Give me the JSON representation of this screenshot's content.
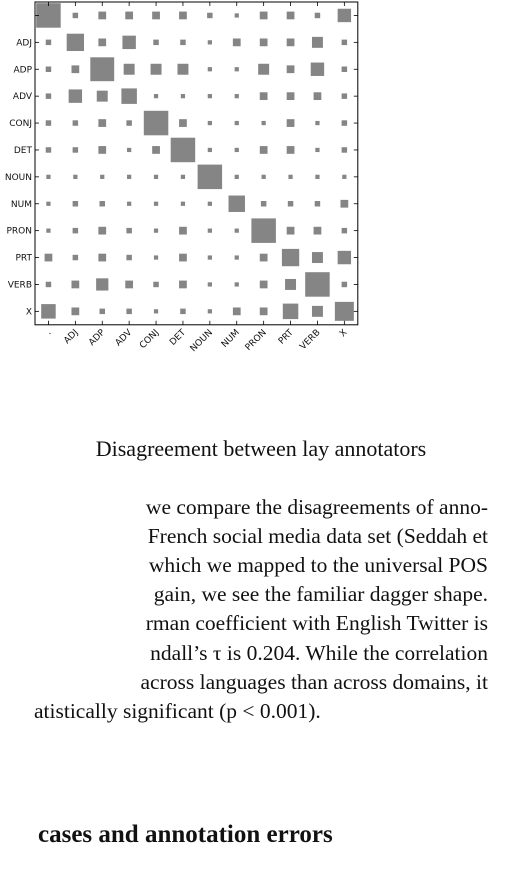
{
  "chart_data": {
    "type": "heatmap",
    "title": "",
    "xlabel": "",
    "ylabel": "",
    "categories": [
      "",
      "ADJ",
      "ADP",
      "ADV",
      "CONJ",
      "DET",
      "NOUN",
      "NUM",
      "PRON",
      "PRT",
      "VERB",
      "X"
    ],
    "y_tick_labels": [
      "",
      "ADJ",
      "ADP",
      "ADV",
      "CONJ",
      "DET",
      "NOUN",
      "NUM",
      "PRON",
      "PRT",
      "VERB",
      "X"
    ],
    "x_tick_labels": [
      ".",
      "ADJ",
      "ADP",
      "ADV",
      "CONJ",
      "DET",
      "NOUN",
      "NUM",
      "PRON",
      "PRT",
      "VERB",
      "X"
    ],
    "values": [
      [
        1.0,
        0.05,
        0.1,
        0.1,
        0.1,
        0.1,
        0.05,
        0.03,
        0.1,
        0.1,
        0.05,
        0.3
      ],
      [
        0.05,
        0.5,
        0.1,
        0.3,
        0.05,
        0.05,
        0.03,
        0.1,
        0.1,
        0.1,
        0.2,
        0.05
      ],
      [
        0.05,
        0.1,
        0.95,
        0.2,
        0.2,
        0.2,
        0.03,
        0.03,
        0.2,
        0.1,
        0.3,
        0.05
      ],
      [
        0.05,
        0.3,
        0.2,
        0.4,
        0.03,
        0.03,
        0.03,
        0.03,
        0.1,
        0.1,
        0.1,
        0.05
      ],
      [
        0.05,
        0.05,
        0.1,
        0.05,
        1.0,
        0.1,
        0.03,
        0.03,
        0.03,
        0.1,
        0.03,
        0.05
      ],
      [
        0.05,
        0.05,
        0.1,
        0.03,
        0.1,
        1.0,
        0.03,
        0.03,
        0.1,
        0.1,
        0.03,
        0.05
      ],
      [
        0.03,
        0.03,
        0.03,
        0.03,
        0.03,
        0.03,
        1.0,
        0.03,
        0.03,
        0.03,
        0.03,
        0.03
      ],
      [
        0.03,
        0.05,
        0.05,
        0.03,
        0.03,
        0.03,
        0.03,
        0.45,
        0.05,
        0.05,
        0.05,
        0.1
      ],
      [
        0.03,
        0.05,
        0.1,
        0.05,
        0.03,
        0.1,
        0.03,
        0.03,
        1.0,
        0.1,
        0.1,
        0.05
      ],
      [
        0.1,
        0.05,
        0.1,
        0.05,
        0.03,
        0.1,
        0.03,
        0.03,
        0.1,
        0.5,
        0.2,
        0.3
      ],
      [
        0.05,
        0.1,
        0.25,
        0.1,
        0.05,
        0.1,
        0.03,
        0.03,
        0.1,
        0.2,
        1.0,
        0.05
      ],
      [
        0.35,
        0.1,
        0.05,
        0.05,
        0.03,
        0.05,
        0.03,
        0.1,
        0.1,
        0.4,
        0.2,
        0.6
      ]
    ],
    "grid": false,
    "legend": "none"
  },
  "caption": "Disagreement between lay annotators",
  "paragraph_lines": [
    "we compare the disagreements of anno-",
    "French social media data set (Seddah et",
    "which we mapped to the universal POS",
    "gain, we see the familiar dagger shape.",
    "rman coefficient with English Twitter is",
    "ndall’s τ is 0.204. While the correlation",
    "across languages than across domains, it",
    "atistically significant (p < 0.001)."
  ],
  "section_heading": "cases and annotation errors"
}
